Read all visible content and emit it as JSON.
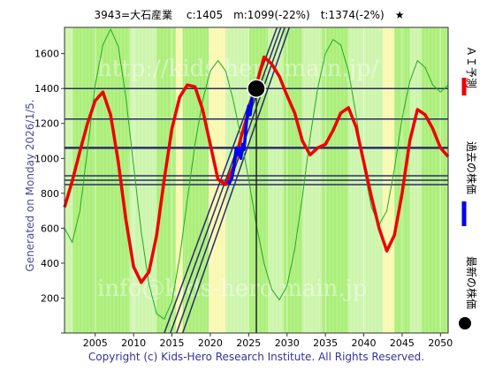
{
  "header": {
    "title": "3943=大石産業　 c:1405　m:1099(-22%)　t:1374(-2%)　★"
  },
  "side": {
    "generated": "Generated on Monday 2026/1/5.",
    "legend_forecast": "ＡＩ予測",
    "legend_past": "過去の株価",
    "legend_latest": "最新の株価"
  },
  "footer": {
    "copyright": "Copyright (c) Kids-Hero Research Institute. All Rights Reserved."
  },
  "watermarks": [
    "http://kids-hero.main.jp/",
    "info@kids-hero.main.jp"
  ],
  "colors": {
    "forecast": "#ee0000",
    "past": "#0000ee",
    "thin_line": "#22aa22",
    "band_line": "#2c2c6a",
    "bg_green": "#aaee77",
    "bg_light": "#ccf5aa",
    "bg_yellow": "#f8f8b0"
  },
  "chart_data": {
    "type": "line",
    "title": "3943=大石産業　 c:1405　m:1099(-22%)　t:1374(-2%)　★",
    "xlim": [
      2001,
      2051
    ],
    "ylim": [
      0,
      1750
    ],
    "x_ticks": [
      2005,
      2010,
      2015,
      2020,
      2025,
      2030,
      2035,
      2040,
      2045,
      2050
    ],
    "y_ticks": [
      0,
      200,
      400,
      600,
      800,
      1000,
      1200,
      1400,
      1600
    ],
    "hlines": [
      1400,
      1225,
      1060,
      900,
      875,
      850
    ],
    "vline": 2026,
    "latest_point": {
      "x": 2026,
      "y": 1400
    },
    "forecast_series": [
      [
        2001,
        720
      ],
      [
        2002,
        870
      ],
      [
        2003,
        1040
      ],
      [
        2004,
        1200
      ],
      [
        2005,
        1330
      ],
      [
        2006,
        1380
      ],
      [
        2007,
        1250
      ],
      [
        2008,
        980
      ],
      [
        2009,
        650
      ],
      [
        2010,
        380
      ],
      [
        2011,
        290
      ],
      [
        2012,
        350
      ],
      [
        2013,
        560
      ],
      [
        2014,
        880
      ],
      [
        2015,
        1170
      ],
      [
        2016,
        1350
      ],
      [
        2017,
        1420
      ],
      [
        2018,
        1410
      ],
      [
        2019,
        1280
      ],
      [
        2020,
        1080
      ],
      [
        2021,
        880
      ],
      [
        2022,
        850
      ],
      [
        2023,
        950
      ],
      [
        2024,
        1120
      ],
      [
        2025,
        1270
      ],
      [
        2026,
        1420
      ],
      [
        2027,
        1580
      ],
      [
        2028,
        1540
      ],
      [
        2029,
        1470
      ],
      [
        2030,
        1360
      ],
      [
        2031,
        1260
      ],
      [
        2032,
        1100
      ],
      [
        2033,
        1020
      ],
      [
        2034,
        1060
      ],
      [
        2035,
        1080
      ],
      [
        2036,
        1160
      ],
      [
        2037,
        1260
      ],
      [
        2038,
        1290
      ],
      [
        2039,
        1180
      ],
      [
        2040,
        980
      ],
      [
        2041,
        780
      ],
      [
        2042,
        600
      ],
      [
        2043,
        470
      ],
      [
        2044,
        560
      ],
      [
        2045,
        800
      ],
      [
        2046,
        1100
      ],
      [
        2047,
        1280
      ],
      [
        2048,
        1250
      ],
      [
        2049,
        1170
      ],
      [
        2050,
        1060
      ],
      [
        2051,
        1010
      ]
    ],
    "past_series": [
      [
        2022.2,
        870
      ],
      [
        2022.5,
        860
      ],
      [
        2022.8,
        885
      ],
      [
        2023.0,
        930
      ],
      [
        2023.2,
        1000
      ],
      [
        2023.4,
        1060
      ],
      [
        2023.6,
        1020
      ],
      [
        2023.8,
        1060
      ],
      [
        2024.0,
        1000
      ],
      [
        2024.2,
        1080
      ],
      [
        2024.4,
        1050
      ],
      [
        2024.6,
        1150
      ],
      [
        2024.8,
        1240
      ],
      [
        2025.0,
        1300
      ],
      [
        2025.2,
        1250
      ],
      [
        2025.4,
        1330
      ],
      [
        2025.6,
        1380
      ],
      [
        2025.8,
        1395
      ],
      [
        2026.0,
        1400
      ]
    ],
    "thin_series": [
      [
        2001,
        600
      ],
      [
        2002,
        520
      ],
      [
        2003,
        700
      ],
      [
        2004,
        1050
      ],
      [
        2005,
        1420
      ],
      [
        2006,
        1650
      ],
      [
        2007,
        1740
      ],
      [
        2008,
        1640
      ],
      [
        2009,
        1350
      ],
      [
        2010,
        960
      ],
      [
        2011,
        580
      ],
      [
        2012,
        280
      ],
      [
        2013,
        110
      ],
      [
        2014,
        80
      ],
      [
        2015,
        180
      ],
      [
        2016,
        430
      ],
      [
        2017,
        760
      ],
      [
        2018,
        1080
      ],
      [
        2019,
        1330
      ],
      [
        2020,
        1500
      ],
      [
        2021,
        1560
      ],
      [
        2022,
        1500
      ],
      [
        2023,
        1330
      ],
      [
        2024,
        1120
      ],
      [
        2025,
        880
      ],
      [
        2026,
        620
      ],
      [
        2027,
        400
      ],
      [
        2028,
        250
      ],
      [
        2029,
        190
      ],
      [
        2030,
        270
      ],
      [
        2031,
        480
      ],
      [
        2032,
        780
      ],
      [
        2033,
        1120
      ],
      [
        2034,
        1400
      ],
      [
        2035,
        1600
      ],
      [
        2036,
        1680
      ],
      [
        2037,
        1650
      ],
      [
        2038,
        1500
      ],
      [
        2039,
        1250
      ],
      [
        2040,
        950
      ],
      [
        2041,
        720
      ],
      [
        2042,
        620
      ],
      [
        2043,
        700
      ],
      [
        2044,
        940
      ],
      [
        2045,
        1230
      ],
      [
        2046,
        1440
      ],
      [
        2047,
        1560
      ],
      [
        2048,
        1520
      ],
      [
        2049,
        1420
      ],
      [
        2050,
        1380
      ],
      [
        2051,
        1420
      ]
    ],
    "trend_lines": [
      {
        "x0": 2014.0,
        "y0": 0,
        "x1": 2028.7,
        "y1": 1750
      },
      {
        "x0": 2014.8,
        "y0": 0,
        "x1": 2029.2,
        "y1": 1750
      },
      {
        "x0": 2015.6,
        "y0": 0,
        "x1": 2029.7,
        "y1": 1750
      },
      {
        "x0": 2016.4,
        "y0": 0,
        "x1": 2030.3,
        "y1": 1750
      }
    ],
    "bg_bands": [
      {
        "from": 2001,
        "to": 2002.1,
        "color": "light"
      },
      {
        "from": 2002.1,
        "to": 2003.2,
        "color": "green"
      },
      {
        "from": 2003.2,
        "to": 2009.5,
        "color": "green"
      },
      {
        "from": 2009.5,
        "to": 2013.0,
        "color": "light"
      },
      {
        "from": 2013.0,
        "to": 2015.5,
        "color": "green"
      },
      {
        "from": 2015.5,
        "to": 2016.4,
        "color": "yellow"
      },
      {
        "from": 2016.4,
        "to": 2019.8,
        "color": "green"
      },
      {
        "from": 2019.8,
        "to": 2022.0,
        "color": "yellow"
      },
      {
        "from": 2022.0,
        "to": 2025.0,
        "color": "light"
      },
      {
        "from": 2025.0,
        "to": 2027.5,
        "color": "green"
      },
      {
        "from": 2027.5,
        "to": 2029.5,
        "color": "light"
      },
      {
        "from": 2029.5,
        "to": 2032.0,
        "color": "green"
      },
      {
        "from": 2032.0,
        "to": 2034.5,
        "color": "light"
      },
      {
        "from": 2034.5,
        "to": 2038.0,
        "color": "green"
      },
      {
        "from": 2038.0,
        "to": 2042.5,
        "color": "light"
      },
      {
        "from": 2042.5,
        "to": 2044.0,
        "color": "yellow"
      },
      {
        "from": 2044.0,
        "to": 2046.0,
        "color": "green"
      },
      {
        "from": 2046.0,
        "to": 2047.5,
        "color": "light"
      },
      {
        "from": 2047.5,
        "to": 2051.0,
        "color": "green"
      }
    ]
  }
}
